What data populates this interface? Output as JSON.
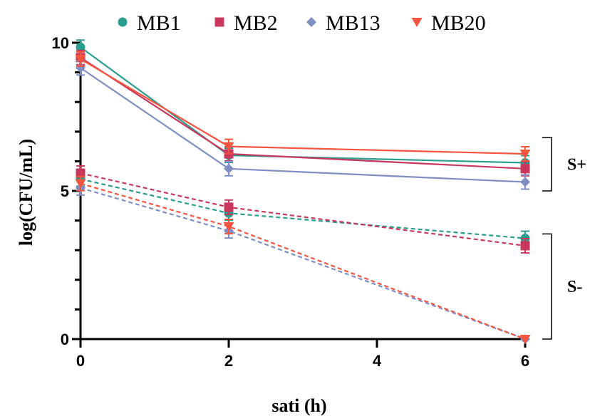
{
  "chart_data": {
    "type": "line",
    "title": "",
    "xlabel": "sati (h)",
    "ylabel": "log(CFU/mL)",
    "x": [
      0,
      2,
      6
    ],
    "xticks": [
      0,
      2,
      4,
      6
    ],
    "yticks": [
      0,
      5,
      10
    ],
    "xlim": [
      0,
      6
    ],
    "ylim": [
      0,
      10
    ],
    "legend_position": "top",
    "legend": [
      {
        "name": "MB1",
        "color": "#2a9d8f",
        "marker": "circle"
      },
      {
        "name": "MB2",
        "color": "#c8385c",
        "marker": "square"
      },
      {
        "name": "MB13",
        "color": "#7f8fc4",
        "marker": "diamond"
      },
      {
        "name": "MB20",
        "color": "#f5543f",
        "marker": "triangle-down"
      }
    ],
    "series": [
      {
        "name": "MB1",
        "group": "S+",
        "line": "solid",
        "values": [
          9.85,
          6.2,
          5.95
        ]
      },
      {
        "name": "MB2",
        "group": "S+",
        "line": "solid",
        "values": [
          9.5,
          6.25,
          5.75
        ]
      },
      {
        "name": "MB13",
        "group": "S+",
        "line": "solid",
        "values": [
          9.15,
          5.75,
          5.3
        ]
      },
      {
        "name": "MB20",
        "group": "S+",
        "line": "solid",
        "values": [
          9.45,
          6.5,
          6.25
        ]
      },
      {
        "name": "MB1",
        "group": "S-",
        "line": "dashed",
        "values": [
          5.4,
          4.25,
          3.4
        ]
      },
      {
        "name": "MB2",
        "group": "S-",
        "line": "dashed",
        "values": [
          5.6,
          4.45,
          3.15
        ]
      },
      {
        "name": "MB13",
        "group": "S-",
        "line": "dashed",
        "values": [
          5.1,
          3.65,
          0.0
        ]
      },
      {
        "name": "MB20",
        "group": "S-",
        "line": "dashed",
        "values": [
          5.25,
          3.8,
          0.0
        ]
      }
    ],
    "error_bars": true,
    "annotations": [
      {
        "text": "S+",
        "y_range": [
          5.0,
          6.8
        ]
      },
      {
        "text": "S-",
        "y_range": [
          0.0,
          3.55
        ]
      }
    ]
  }
}
